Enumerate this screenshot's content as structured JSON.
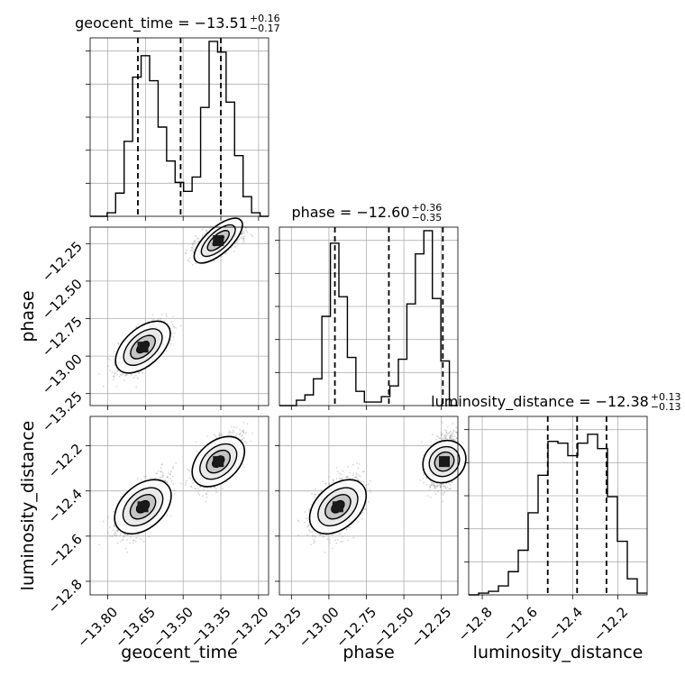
{
  "chart_data": {
    "type": "corner",
    "parameters": [
      "geocent_time",
      "phase",
      "luminosity_distance"
    ],
    "ranges": {
      "geocent_time": [
        -13.87,
        -13.16
      ],
      "phase": [
        -13.33,
        -12.14
      ],
      "luminosity_distance": [
        -12.86,
        -12.07
      ]
    },
    "ticks": {
      "geocent_time": [
        -13.8,
        -13.65,
        -13.5,
        -13.35,
        -13.2
      ],
      "phase": [
        -13.25,
        -13.0,
        -12.75,
        -12.5,
        -12.25
      ],
      "luminosity_distance": [
        -12.8,
        -12.6,
        -12.4,
        -12.2
      ]
    },
    "tick_labels": {
      "geocent_time": [
        "−13.80",
        "−13.65",
        "−13.50",
        "−13.35",
        "−13.20"
      ],
      "phase": [
        "−13.25",
        "−13.00",
        "−12.75",
        "−12.50",
        "−12.25"
      ],
      "luminosity_distance": [
        "−12.8",
        "−12.6",
        "−12.4",
        "−12.2"
      ]
    },
    "axis_labels": {
      "geocent_time": "geocent_time",
      "phase": "phase",
      "luminosity_distance": "luminosity_distance"
    },
    "titles": [
      {
        "param": "geocent_time",
        "main": "geocent_time = −13.51",
        "plus": "+0.16",
        "minus": "−0.17"
      },
      {
        "param": "phase",
        "main": "phase = −12.60",
        "plus": "+0.36",
        "minus": "−0.35"
      },
      {
        "param": "luminosity_distance",
        "main": "luminosity_distance = −12.38",
        "plus": "+0.13",
        "minus": "−0.13"
      }
    ],
    "quantiles": {
      "geocent_time": [
        -13.68,
        -13.51,
        -13.35
      ],
      "phase": [
        -12.96,
        -12.6,
        -12.24
      ],
      "luminosity_distance": [
        -12.51,
        -12.38,
        -12.25
      ]
    },
    "histograms": {
      "geocent_time": [
        0,
        0,
        0.02,
        0.13,
        0.42,
        0.78,
        0.9,
        0.76,
        0.5,
        0.31,
        0.19,
        0.14,
        0.22,
        0.61,
        0.98,
        0.92,
        0.64,
        0.34,
        0.11,
        0.02,
        0
      ],
      "phase": [
        0,
        0,
        0.03,
        0.06,
        0.15,
        0.5,
        0.91,
        0.61,
        0.27,
        0.08,
        0.02,
        0.02,
        0.05,
        0.11,
        0.26,
        0.57,
        0.85,
        0.98,
        0.6,
        0.25,
        0
      ],
      "luminosity_distance": [
        0,
        0.01,
        0.02,
        0.05,
        0.13,
        0.25,
        0.46,
        0.67,
        0.86,
        0.85,
        0.78,
        0.85,
        0.9,
        0.82,
        0.55,
        0.3,
        0.09,
        0.01
      ]
    },
    "modes": [
      {
        "geocent_time": -13.66,
        "phase": -12.94,
        "luminosity_distance": -12.47,
        "weight": 0.5
      },
      {
        "geocent_time": -13.36,
        "phase": -12.23,
        "luminosity_distance": -12.27,
        "weight": 0.5
      }
    ],
    "grid": true
  }
}
